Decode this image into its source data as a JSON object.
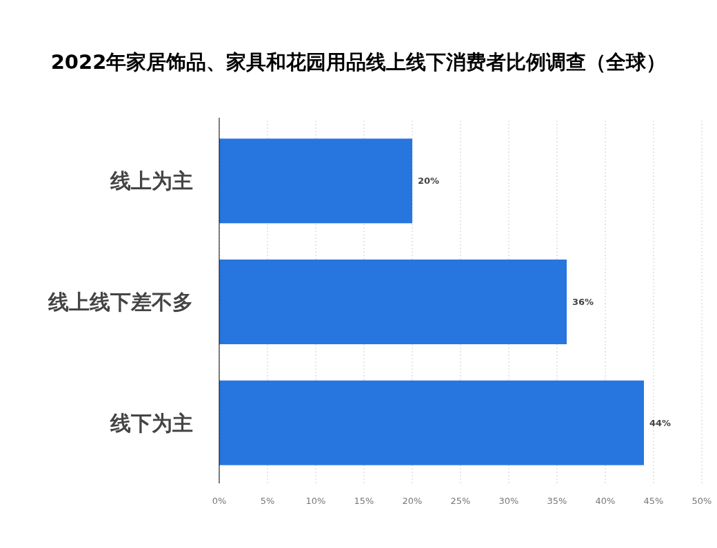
{
  "chart_data": {
    "type": "bar",
    "orientation": "horizontal",
    "title": "2022年家居饰品、家具和花园用品线上线下消费者比例调查（全球）",
    "categories": [
      "线上为主",
      "线上线下差不多",
      "线下为主"
    ],
    "values": [
      20,
      36,
      44
    ],
    "value_labels": [
      "20%",
      "36%",
      "44%"
    ],
    "color": "#2775de",
    "xlim": [
      0,
      50
    ],
    "xticks": [
      {
        "value": 0,
        "label": "0%"
      },
      {
        "value": 5,
        "label": "5%"
      },
      {
        "value": 10,
        "label": "10%"
      },
      {
        "value": 15,
        "label": "15%"
      },
      {
        "value": 20,
        "label": "20%"
      },
      {
        "value": 25,
        "label": "25%"
      },
      {
        "value": 30,
        "label": "30%"
      },
      {
        "value": 35,
        "label": "35%"
      },
      {
        "value": 40,
        "label": "40%"
      },
      {
        "value": 45,
        "label": "45%"
      },
      {
        "value": 50,
        "label": "50%"
      }
    ],
    "grid": "x"
  }
}
